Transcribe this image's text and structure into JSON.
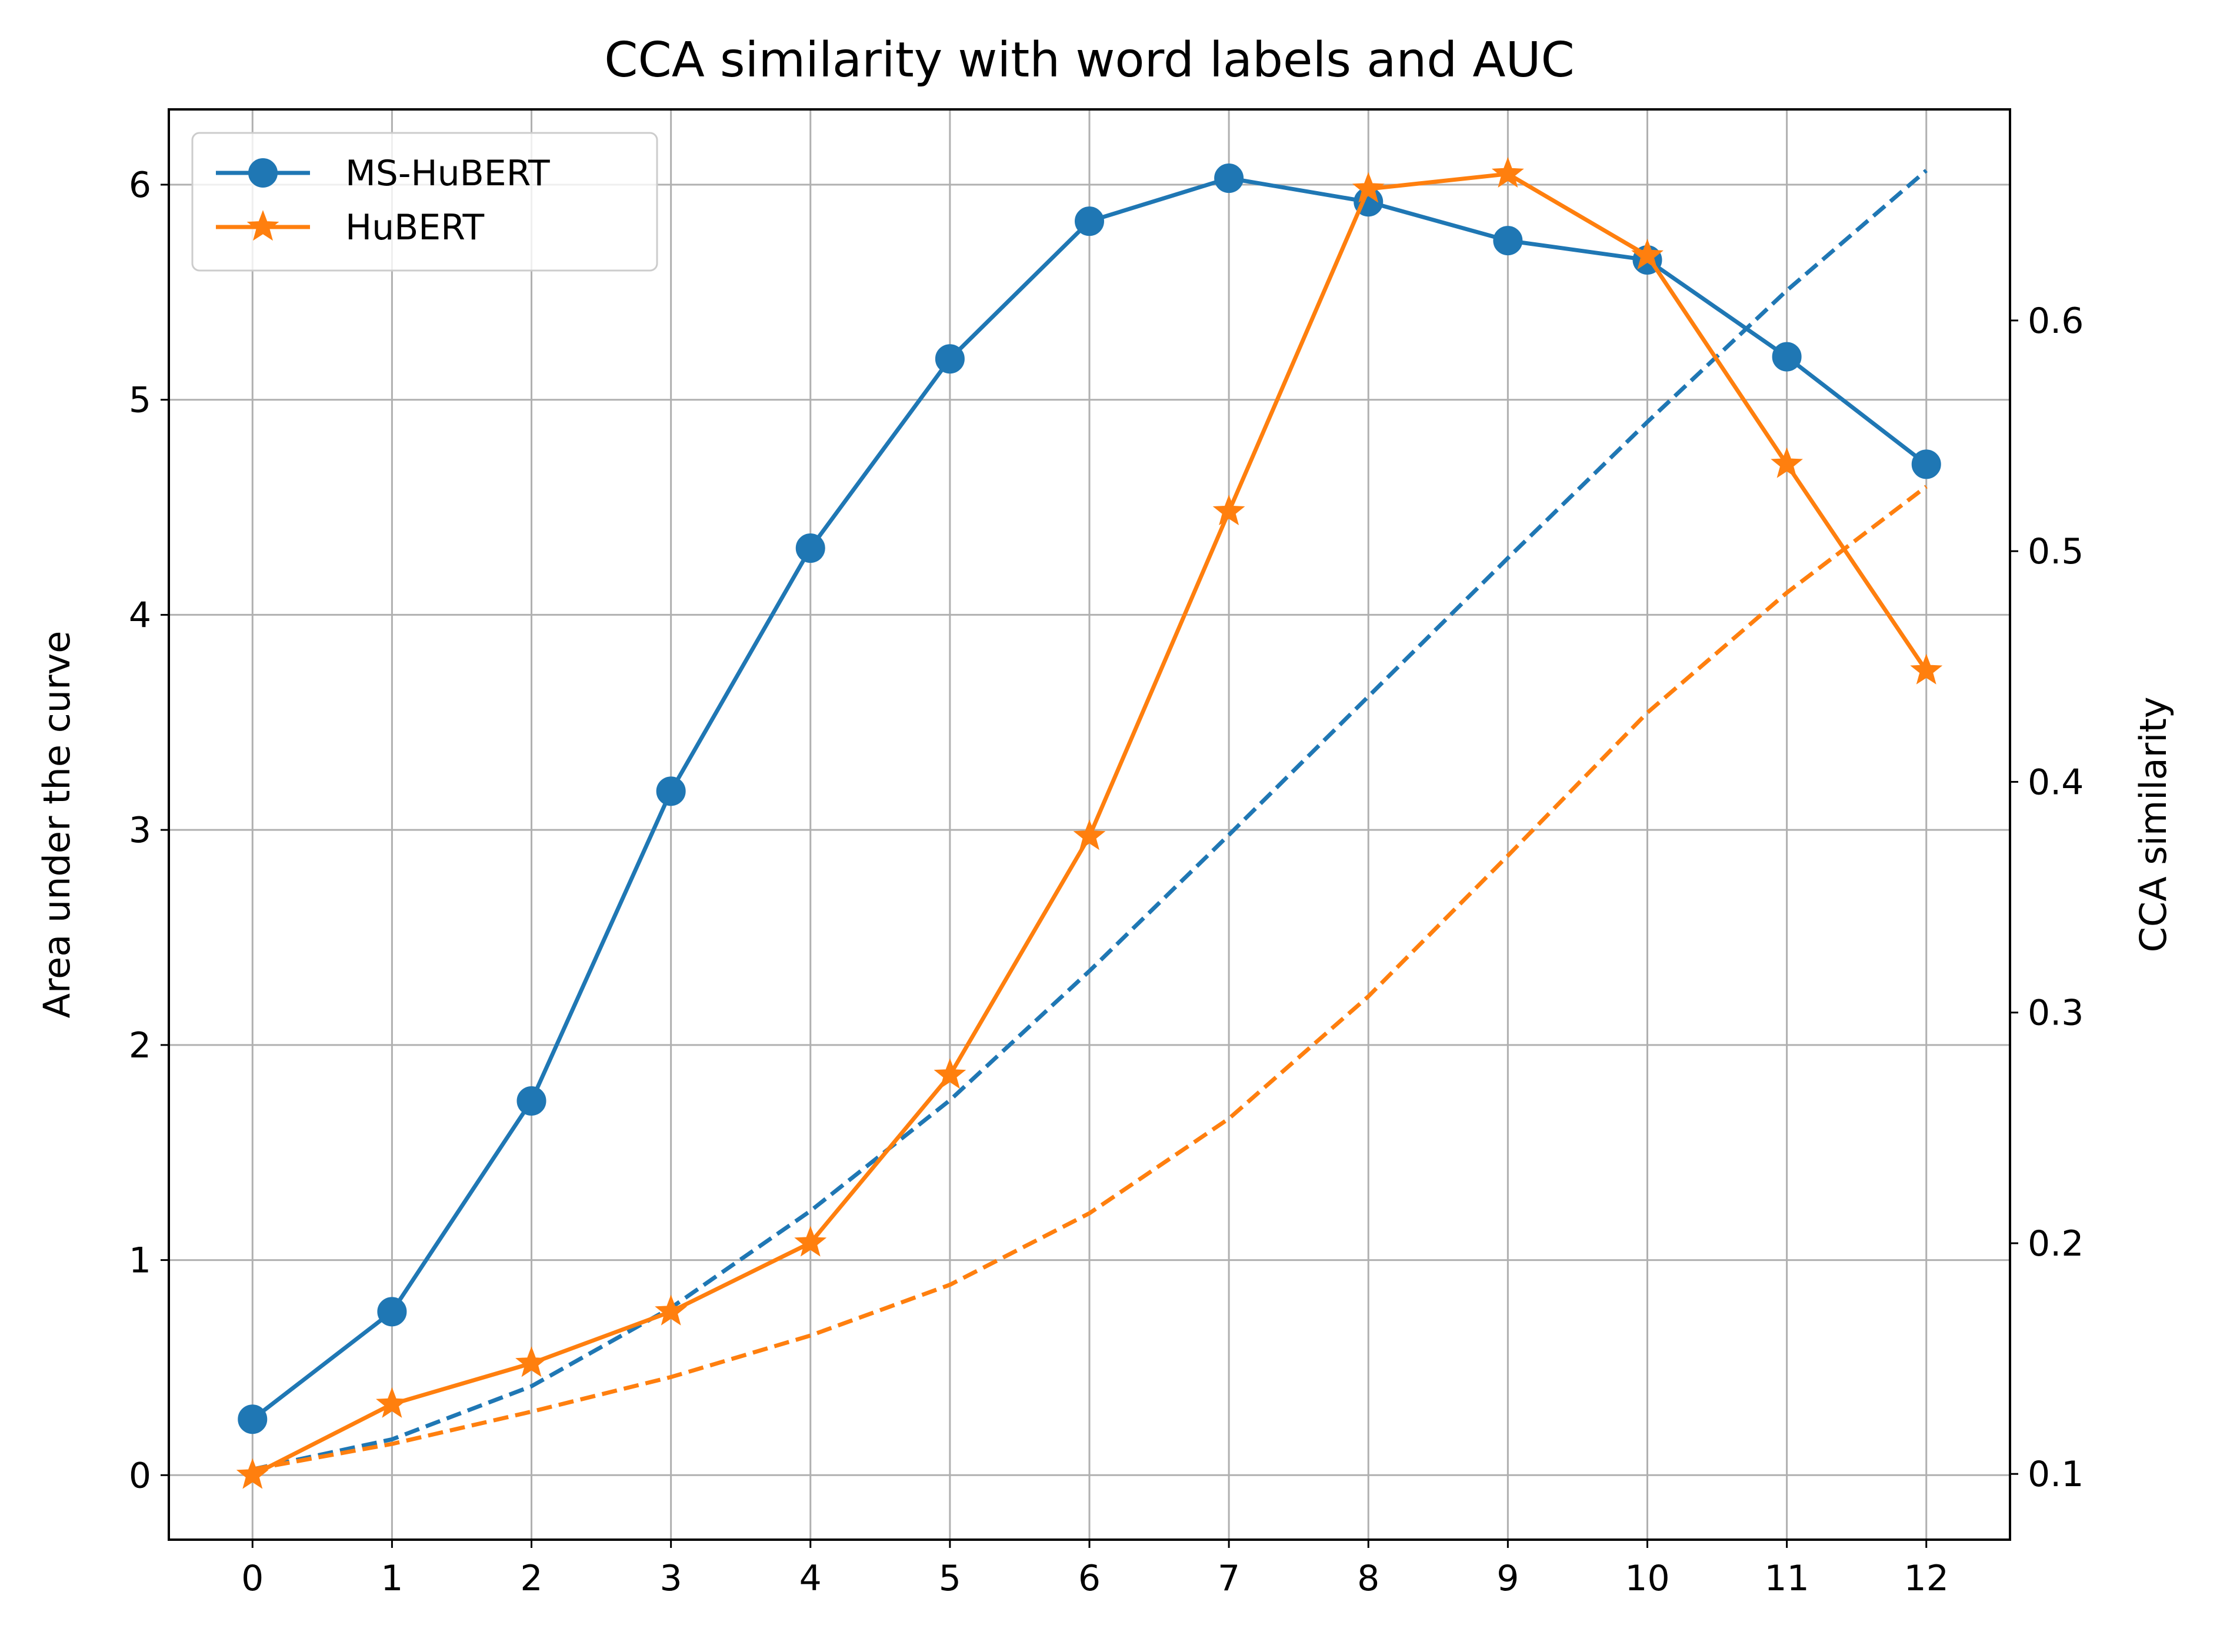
{
  "chart_data": {
    "type": "line",
    "title": "CCA similarity with word labels and AUC",
    "xlabel": "",
    "ylabel": "Area under the curve",
    "ylabel_right": "CCA similarity",
    "x": [
      0,
      1,
      2,
      3,
      4,
      5,
      6,
      7,
      8,
      9,
      10,
      11,
      12
    ],
    "x_ticks": [
      "0",
      "1",
      "2",
      "3",
      "4",
      "5",
      "6",
      "7",
      "8",
      "9",
      "10",
      "11",
      "12"
    ],
    "xlim": [
      -0.6,
      12.6
    ],
    "ylim": [
      -0.3,
      6.35
    ],
    "ylim_right": [
      0.0715,
      0.6915
    ],
    "y_ticks": [
      "0",
      "1",
      "2",
      "3",
      "4",
      "5",
      "6"
    ],
    "y_ticks_right": [
      "0.1",
      "0.2",
      "0.3",
      "0.4",
      "0.5",
      "0.6"
    ],
    "grid": true,
    "legend_position": "top-left",
    "series": [
      {
        "name": "MS-HuBERT",
        "axis": "left",
        "style": "solid",
        "marker": "circle",
        "color": "#1f77b4",
        "values": [
          0.26,
          0.76,
          1.74,
          3.18,
          4.31,
          5.19,
          5.83,
          6.03,
          5.92,
          5.74,
          5.65,
          5.2,
          4.7
        ]
      },
      {
        "name": "HuBERT",
        "axis": "left",
        "style": "solid",
        "marker": "star",
        "color": "#ff7f0e",
        "values": [
          0.0,
          0.33,
          0.52,
          0.76,
          1.08,
          1.86,
          2.97,
          4.48,
          5.98,
          6.05,
          5.67,
          4.7,
          3.74
        ]
      },
      {
        "axis": "right",
        "style": "dashed",
        "color": "#1f77b4",
        "values": [
          0.102,
          0.115,
          0.138,
          0.172,
          0.214,
          0.262,
          0.318,
          0.377,
          0.437,
          0.497,
          0.556,
          0.613,
          0.665
        ]
      },
      {
        "axis": "right",
        "style": "dashed",
        "color": "#ff7f0e",
        "values": [
          0.102,
          0.113,
          0.127,
          0.142,
          0.16,
          0.182,
          0.213,
          0.254,
          0.307,
          0.368,
          0.43,
          0.482,
          0.528
        ]
      }
    ]
  }
}
